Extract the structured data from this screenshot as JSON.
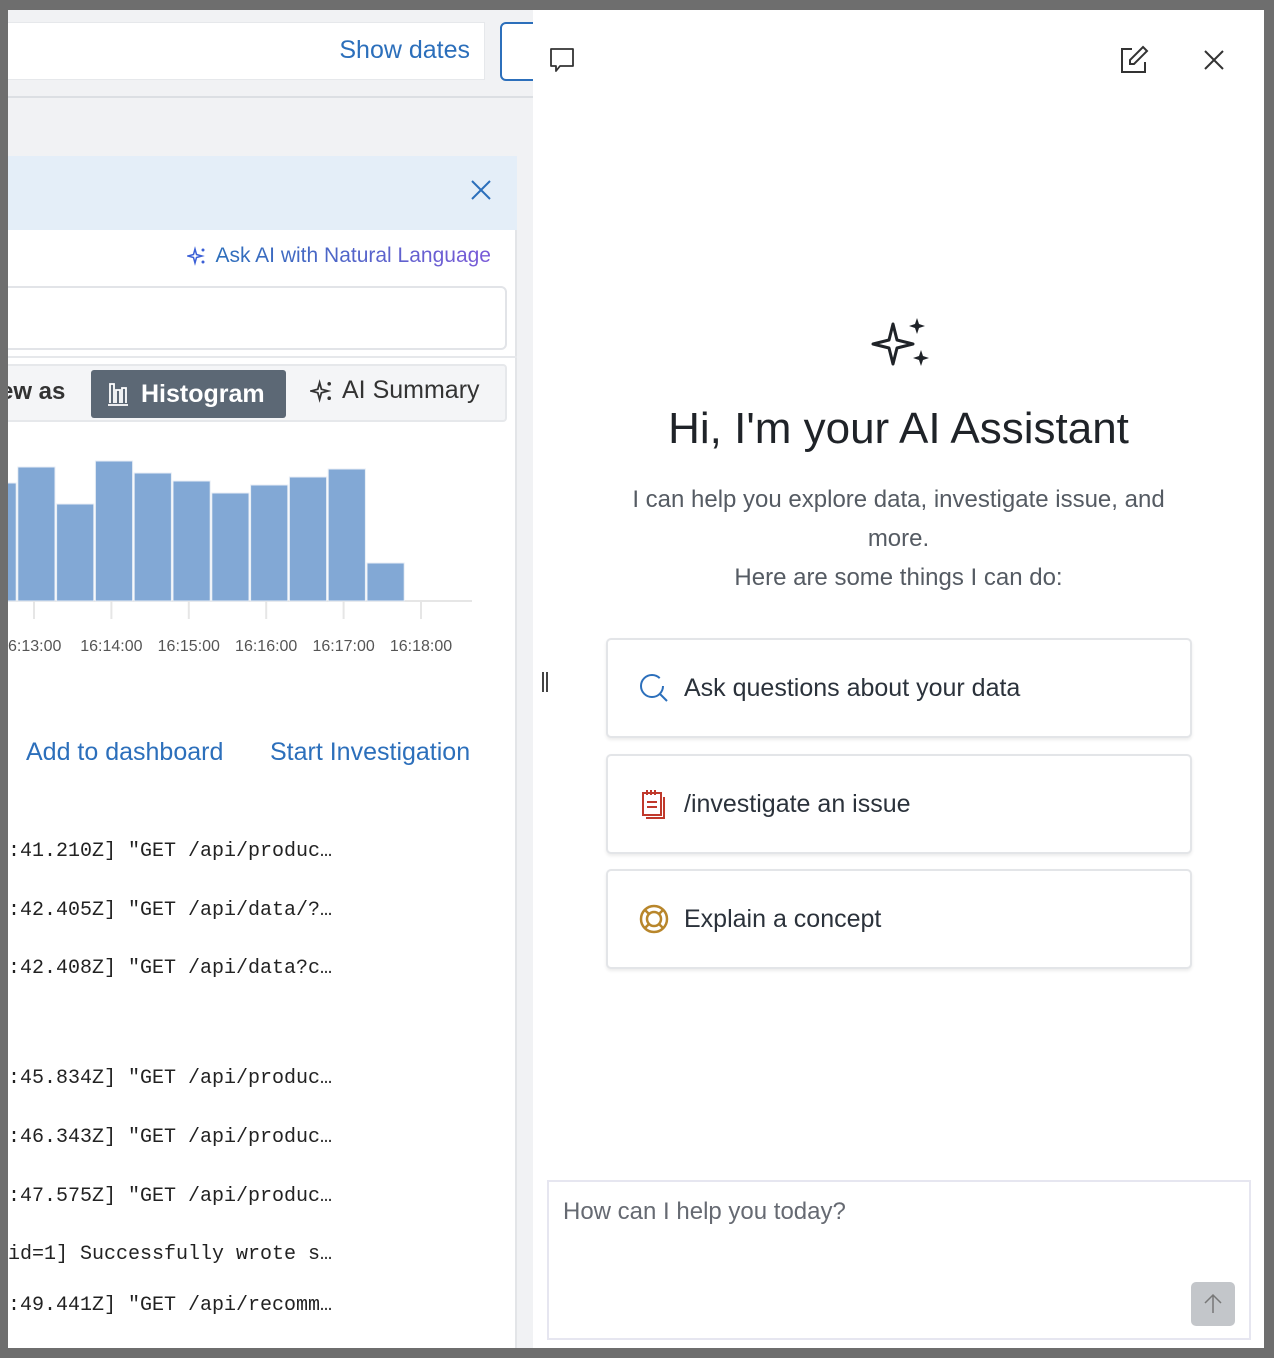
{
  "toolbar": {
    "show_dates": "Show dates"
  },
  "query": {
    "ask_ai_label": "Ask AI with Natural Language",
    "input_value": ""
  },
  "view": {
    "view_as_label": "ew as",
    "histogram_label": "Histogram",
    "ai_summary_label": "AI Summary"
  },
  "chart_data": {
    "type": "bar",
    "title": "",
    "xlabel": "",
    "ylabel": "",
    "bar_color": "#82a8d5",
    "grid": false,
    "interval": "30s",
    "x_tick_labels": [
      "6:13:00",
      "16:14:00",
      "16:15:00",
      "16:16:00",
      "16:17:00",
      "16:18:00"
    ],
    "values": [
      118,
      134,
      97,
      140,
      128,
      120,
      108,
      116,
      124,
      132,
      38
    ]
  },
  "actions": {
    "add_dashboard": "Add to dashboard",
    "start_investigation": "Start Investigation"
  },
  "logs": [
    ":41.210Z] \"GET /api/produc…",
    ":42.405Z] \"GET /api/data/?…",
    ":42.408Z] \"GET /api/data?c…",
    "",
    ":45.834Z] \"GET /api/produc…",
    ":46.343Z] \"GET /api/produc…",
    ":47.575Z] \"GET /api/produc…",
    "id=1] Successfully wrote s…",
    ":49.441Z] \"GET /api/recomm…"
  ],
  "assistant": {
    "title": "Hi, I'm your AI Assistant",
    "subtitle_line1": "I can help you explore data, investigate issue, and",
    "subtitle_line2": "more.",
    "subtitle_line3": "Here are some things I can do:",
    "suggestions": [
      {
        "label": "Ask questions about your data",
        "icon": "search-icon",
        "color": "#2c6fbb"
      },
      {
        "label": "/investigate an issue",
        "icon": "notepad-icon",
        "color": "#c0392b"
      },
      {
        "label": "Explain a concept",
        "icon": "lifebuoy-icon",
        "color": "#b8862b"
      }
    ],
    "input_placeholder": "How can I help you today?"
  }
}
